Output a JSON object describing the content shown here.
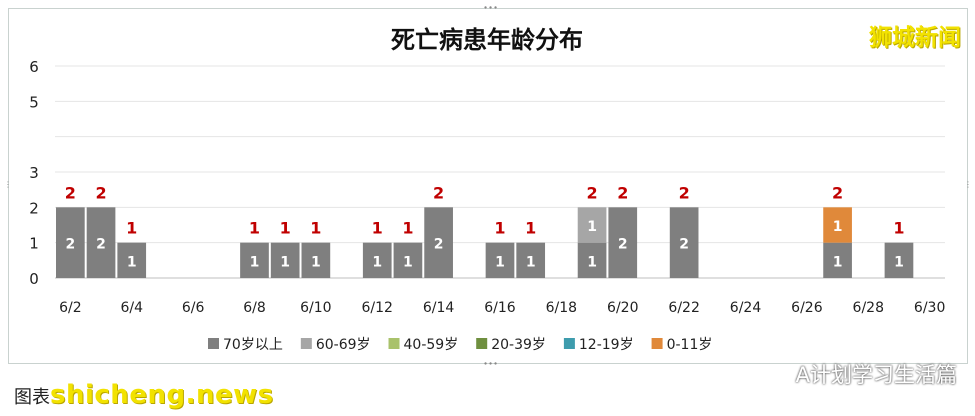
{
  "chart_data": {
    "type": "bar",
    "stacked": true,
    "title": "死亡病患年龄分布",
    "categories": [
      "6/2",
      "6/3",
      "6/4",
      "6/5",
      "6/6",
      "6/7",
      "6/8",
      "6/9",
      "6/10",
      "6/11",
      "6/12",
      "6/13",
      "6/14",
      "6/15",
      "6/16",
      "6/17",
      "6/18",
      "6/19",
      "6/20",
      "6/21",
      "6/22",
      "6/23",
      "6/24",
      "6/25",
      "6/26",
      "6/27",
      "6/28",
      "6/29",
      "6/30"
    ],
    "x_tick_labels": [
      "6/2",
      "6/4",
      "6/6",
      "6/8",
      "6/10",
      "6/12",
      "6/14",
      "6/16",
      "6/18",
      "6/20",
      "6/22",
      "6/24",
      "6/26",
      "6/28",
      "6/30"
    ],
    "ylim": [
      0,
      6
    ],
    "y_tick_labels": [
      "0",
      "1",
      "2",
      "3",
      "5",
      "6"
    ],
    "grid": true,
    "legend_position": "bottom",
    "series": [
      {
        "name": "70岁以上",
        "color": "#7f7f7f",
        "values": [
          2,
          2,
          1,
          0,
          0,
          0,
          1,
          1,
          1,
          0,
          1,
          1,
          2,
          0,
          1,
          1,
          0,
          1,
          2,
          0,
          2,
          0,
          0,
          0,
          0,
          1,
          0,
          1,
          0
        ]
      },
      {
        "name": "60-69岁",
        "color": "#a6a6a6",
        "values": [
          0,
          0,
          0,
          0,
          0,
          0,
          0,
          0,
          0,
          0,
          0,
          0,
          0,
          0,
          0,
          0,
          0,
          1,
          0,
          0,
          0,
          0,
          0,
          0,
          0,
          0,
          0,
          0,
          0
        ]
      },
      {
        "name": "40-59岁",
        "color": "#a9c26b",
        "values": [
          0,
          0,
          0,
          0,
          0,
          0,
          0,
          0,
          0,
          0,
          0,
          0,
          0,
          0,
          0,
          0,
          0,
          0,
          0,
          0,
          0,
          0,
          0,
          0,
          0,
          0,
          0,
          0,
          0
        ]
      },
      {
        "name": "20-39岁",
        "color": "#6f8f3f",
        "values": [
          0,
          0,
          0,
          0,
          0,
          0,
          0,
          0,
          0,
          0,
          0,
          0,
          0,
          0,
          0,
          0,
          0,
          0,
          0,
          0,
          0,
          0,
          0,
          0,
          0,
          0,
          0,
          0,
          0
        ]
      },
      {
        "name": "12-19岁",
        "color": "#3e9cad",
        "values": [
          0,
          0,
          0,
          0,
          0,
          0,
          0,
          0,
          0,
          0,
          0,
          0,
          0,
          0,
          0,
          0,
          0,
          0,
          0,
          0,
          0,
          0,
          0,
          0,
          0,
          0,
          0,
          0,
          0
        ]
      },
      {
        "name": "0-11岁",
        "color": "#e0893a",
        "values": [
          0,
          0,
          0,
          0,
          0,
          0,
          0,
          0,
          0,
          0,
          0,
          0,
          0,
          0,
          0,
          0,
          0,
          0,
          0,
          0,
          0,
          0,
          0,
          0,
          0,
          1,
          0,
          0,
          0
        ]
      }
    ],
    "total_label_color": "#c00000"
  },
  "watermarks": {
    "brand": "狮城新闻",
    "credit": "图表：",
    "site": "shicheng.news",
    "wechat": "A计划学习生活篇"
  }
}
